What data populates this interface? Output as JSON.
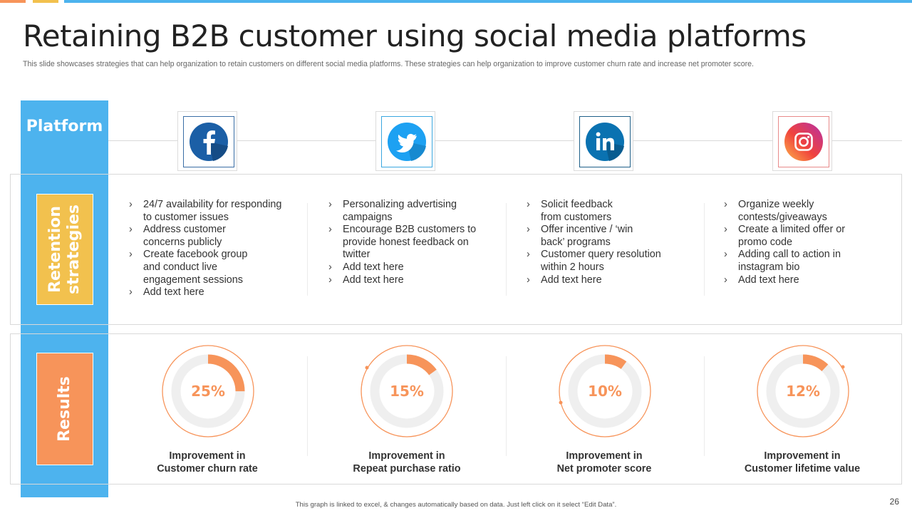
{
  "title": "Retaining B2B customer using social media platforms",
  "subtitle": "This slide showcases strategies that can help organization to retain customers on different social media platforms. These strategies can help organization to improve customer churn rate and increase net promoter score.",
  "row_labels": {
    "platform": "Platform",
    "retention": "Retention strategies",
    "results": "Results"
  },
  "colors": {
    "accent_blue": "#4db3ee",
    "accent_yellow": "#f2c14e",
    "accent_orange": "#f7945a"
  },
  "platforms": [
    {
      "icon": "facebook-icon",
      "strategies": [
        "24/7 availability  for responding to customer issues",
        "Address customer concerns publicly",
        "Create facebook group and conduct live engagement sessions",
        "Add text here"
      ],
      "result": {
        "value": "25%",
        "fraction": 0.25,
        "label_line1": "Improvement in",
        "label_line2": "Customer churn rate"
      }
    },
    {
      "icon": "twitter-icon",
      "strategies": [
        "Personalizing advertising campaigns",
        "Encourage B2B customers to provide honest feedback on twitter",
        "Add text here",
        "Add text here"
      ],
      "result": {
        "value": "15%",
        "fraction": 0.15,
        "label_line1": "Improvement in",
        "label_line2": "Repeat purchase ratio"
      }
    },
    {
      "icon": "linkedin-icon",
      "strategies": [
        "Solicit feedback from customers",
        "Offer incentive / ‘win back’ programs",
        "Customer query resolution within 2 hours",
        "Add text here"
      ],
      "result": {
        "value": "10%",
        "fraction": 0.1,
        "label_line1": "Improvement in",
        "label_line2": "Net promoter score"
      }
    },
    {
      "icon": "instagram-icon",
      "strategies": [
        "Organize weekly contests/giveaways",
        "Create a limited offer or promo code",
        "Adding call to action in instagram bio",
        "Add text here"
      ],
      "result": {
        "value": "12%",
        "fraction": 0.12,
        "label_line1": "Improvement in",
        "label_line2": "Customer lifetime value"
      }
    }
  ],
  "footer": "This graph is linked to excel, & changes automatically based on data. Just left click on it select “Edit Data”.",
  "page_number": "26"
}
